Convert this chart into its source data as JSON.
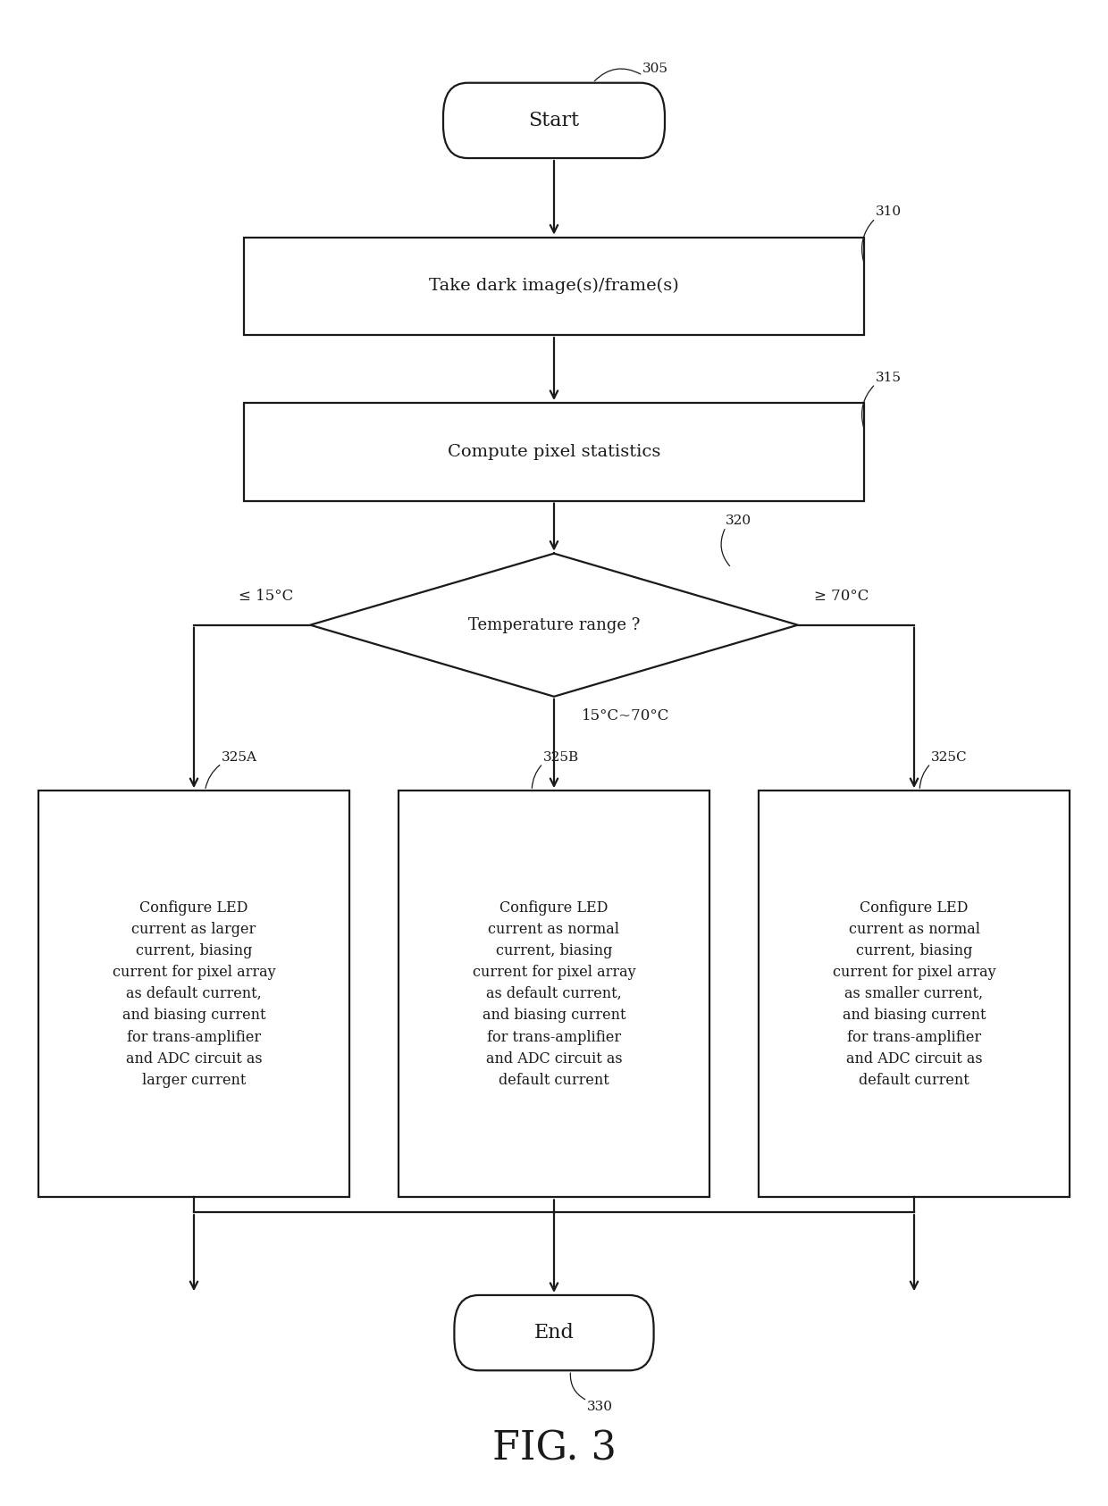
{
  "bg_color": "#ffffff",
  "line_color": "#1a1a1a",
  "text_color": "#1a1a1a",
  "fig_label": "FIG. 3",
  "start_label": "Start",
  "end_label": "End",
  "ref_305": "305",
  "ref_310": "310",
  "ref_315": "315",
  "ref_320": "320",
  "ref_325A": "325A",
  "ref_325B": "325B",
  "ref_325C": "325C",
  "ref_330": "330",
  "label_310": "Take dark image(s)/frame(s)",
  "label_315": "Compute pixel statistics",
  "label_320": "Temperature range ?",
  "label_325A": "Configure LED\ncurrent as larger\ncurrent, biasing\ncurrent for pixel array\nas default current,\nand biasing current\nfor trans-amplifier\nand ADC circuit as\nlarger current",
  "label_325B": "Configure LED\ncurrent as normal\ncurrent, biasing\ncurrent for pixel array\nas default current,\nand biasing current\nfor trans-amplifier\nand ADC circuit as\ndefault current",
  "label_325C": "Configure LED\ncurrent as normal\ncurrent, biasing\ncurrent for pixel array\nas smaller current,\nand biasing current\nfor trans-amplifier\nand ADC circuit as\ndefault current",
  "label_le15": "≤ 15°C",
  "label_ge70": "≥ 70°C",
  "label_mid": "15°C~70°C"
}
